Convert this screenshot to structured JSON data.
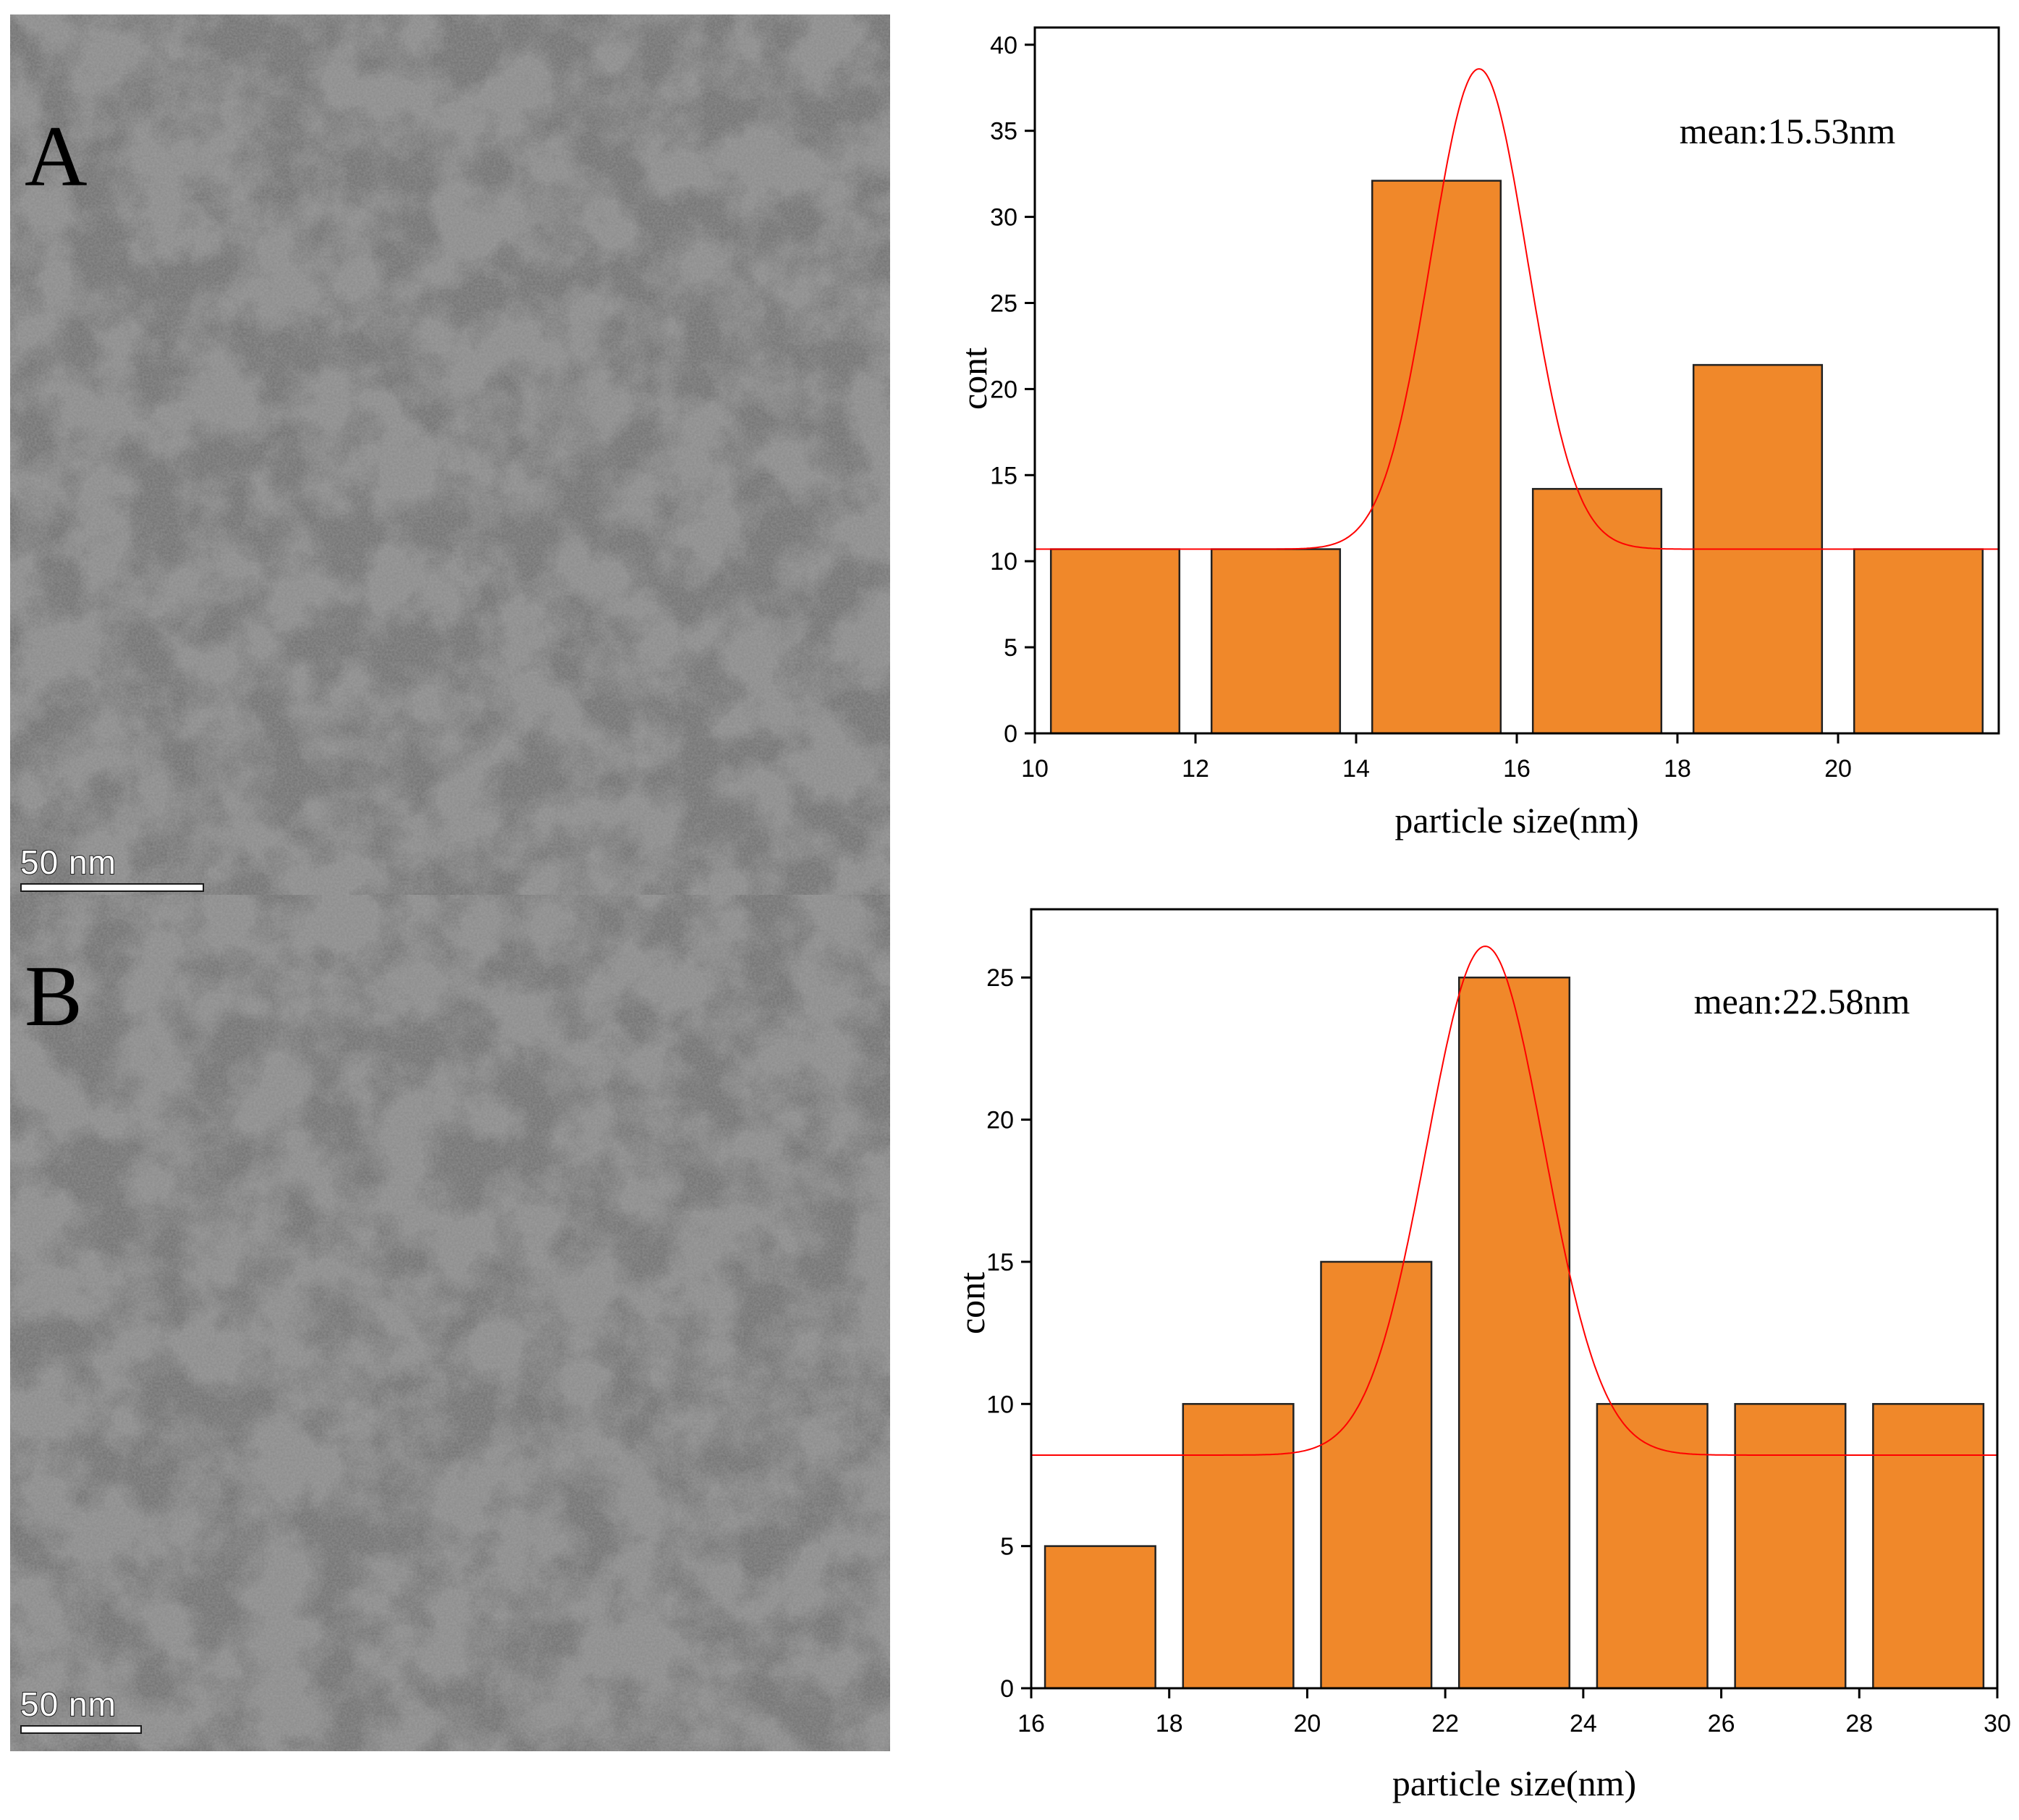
{
  "panels": [
    {
      "letter": "A",
      "scale_bar": "50 nm",
      "scale_bar_nm": 50
    },
    {
      "letter": "B",
      "scale_bar": "50 nm",
      "scale_bar_nm": 50
    }
  ],
  "colors": {
    "bar_fill": "#F0882A",
    "bar_edge": "#222222",
    "fit_curve": "#FF0000",
    "axis": "#000000"
  },
  "chart_data": [
    {
      "type": "bar",
      "title": "",
      "annotation": "mean:15.53nm",
      "xlabel": "particle size(nm)",
      "ylabel": "cont",
      "xlim": [
        10,
        22
      ],
      "ylim": [
        0,
        41
      ],
      "xticks": [
        10,
        12,
        14,
        16,
        18,
        20
      ],
      "yticks": [
        0,
        5,
        10,
        15,
        20,
        25,
        30,
        35,
        40
      ],
      "bars": [
        {
          "x0": 10.2,
          "x1": 11.8,
          "value": 10.7
        },
        {
          "x0": 12.2,
          "x1": 13.8,
          "value": 10.7
        },
        {
          "x0": 14.2,
          "x1": 15.8,
          "value": 32.1
        },
        {
          "x0": 16.2,
          "x1": 17.8,
          "value": 14.2
        },
        {
          "x0": 18.2,
          "x1": 19.8,
          "value": 21.4
        },
        {
          "x0": 20.2,
          "x1": 21.8,
          "value": 10.7
        }
      ],
      "fit": {
        "type": "gaussian",
        "center": 15.53,
        "baseline": 10.7,
        "peak": 38.6,
        "sigma": 0.6
      }
    },
    {
      "type": "bar",
      "title": "",
      "annotation": "mean:22.58nm",
      "xlabel": "particle size(nm)",
      "ylabel": "cont",
      "xlim": [
        16,
        30
      ],
      "ylim": [
        0,
        27.4
      ],
      "xticks": [
        16,
        18,
        20,
        22,
        24,
        26,
        28,
        30
      ],
      "yticks": [
        0,
        5,
        10,
        15,
        20,
        25
      ],
      "bars": [
        {
          "x0": 16.2,
          "x1": 17.8,
          "value": 5
        },
        {
          "x0": 18.2,
          "x1": 19.8,
          "value": 10
        },
        {
          "x0": 20.2,
          "x1": 21.8,
          "value": 15
        },
        {
          "x0": 22.2,
          "x1": 23.8,
          "value": 25
        },
        {
          "x0": 24.2,
          "x1": 25.8,
          "value": 10
        },
        {
          "x0": 26.2,
          "x1": 27.8,
          "value": 10
        },
        {
          "x0": 28.2,
          "x1": 29.8,
          "value": 10
        }
      ],
      "fit": {
        "type": "gaussian",
        "center": 22.58,
        "baseline": 8.2,
        "peak": 26.1,
        "sigma": 0.85
      }
    }
  ]
}
